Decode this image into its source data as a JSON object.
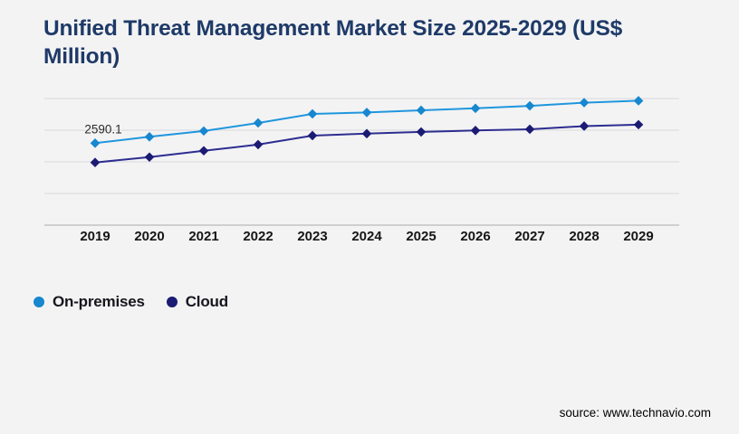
{
  "header": {
    "title": "Unified Threat Management Market Size 2025-2029 (US$ Million)"
  },
  "chart_data": {
    "type": "line",
    "x": [
      2019,
      2020,
      2021,
      2022,
      2023,
      2024,
      2025,
      2026,
      2027,
      2028,
      2029
    ],
    "series": [
      {
        "name": "On-premises",
        "color": "#1787cf",
        "line_color": "#2096dd",
        "marker": "diamond",
        "values": [
          2590.1,
          2790,
          2975,
          3230,
          3515,
          3560,
          3630,
          3690,
          3770,
          3870,
          3930
        ]
      },
      {
        "name": "Cloud",
        "color": "#1b1b74",
        "line_color": "#2d2d90",
        "marker": "diamond",
        "values": [
          1980,
          2150,
          2350,
          2545,
          2830,
          2890,
          2945,
          2990,
          3030,
          3130,
          3175
        ]
      }
    ],
    "annotation": {
      "series": "On-premises",
      "x": 2019,
      "text": "2590.1"
    },
    "title": "Unified Threat Management Market Size 2025-2029 (US$ Million)",
    "xlabel": "",
    "ylabel": "",
    "ylim": [
      0,
      4000
    ],
    "gridline_step": 1000,
    "grid": "horizontal-only",
    "y_axis_tick_labels_visible": false,
    "legend_position": "bottom-left"
  },
  "footer": {
    "source": "source: www.technavio.com"
  },
  "colors": {
    "background": "#f3f3f4",
    "title": "#1e3a67",
    "gridline": "#d9d9dc",
    "axis": "#ababae",
    "axis_label": "#161616",
    "annotation_text": "#2b2b2b"
  }
}
